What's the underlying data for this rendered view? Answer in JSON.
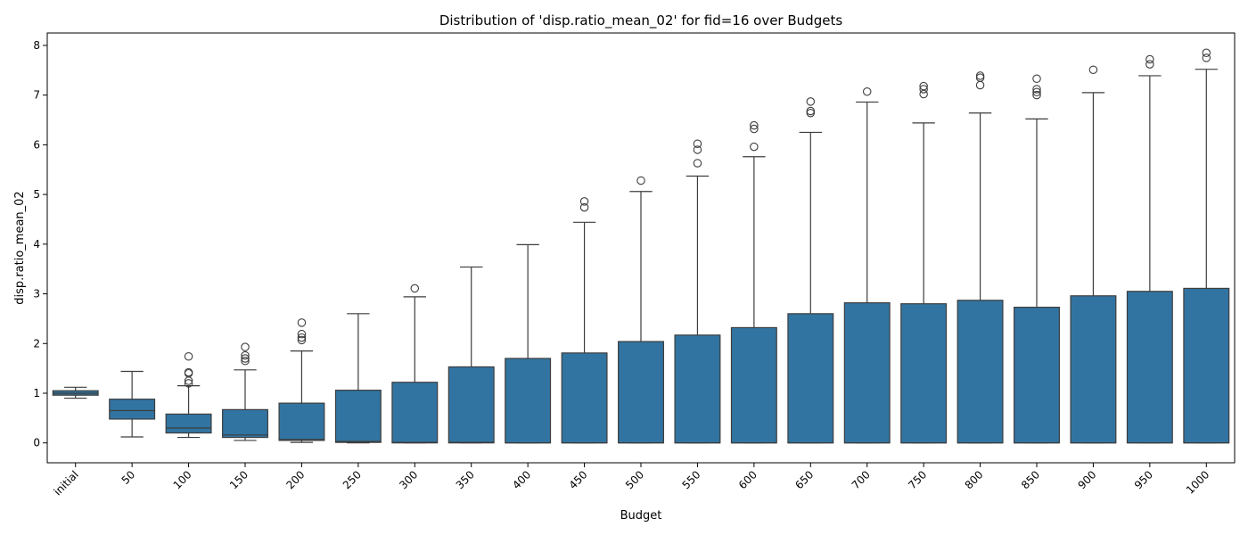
{
  "chart_data": {
    "type": "box",
    "title": "Distribution of 'disp.ratio_mean_02' for fid=16 over Budgets",
    "xlabel": "Budget",
    "ylabel": "disp.ratio_mean_02",
    "ylim": [
      -0.4,
      8.25
    ],
    "yticks": [
      0,
      1,
      2,
      3,
      4,
      5,
      6,
      7,
      8
    ],
    "grid": false,
    "box_color": "#3274a1",
    "line_color": "#3d3d3d",
    "categories": [
      "initial",
      "50",
      "100",
      "150",
      "200",
      "250",
      "300",
      "350",
      "400",
      "450",
      "500",
      "550",
      "600",
      "650",
      "700",
      "750",
      "800",
      "850",
      "900",
      "950",
      "1000"
    ],
    "boxes": [
      {
        "whisker_low": 0.9,
        "q1": 0.96,
        "median": 1.0,
        "q3": 1.05,
        "whisker_high": 1.12,
        "outliers": []
      },
      {
        "whisker_low": 0.12,
        "q1": 0.48,
        "median": 0.65,
        "q3": 0.88,
        "whisker_high": 1.44,
        "outliers": []
      },
      {
        "whisker_low": 0.11,
        "q1": 0.2,
        "median": 0.3,
        "q3": 0.58,
        "whisker_high": 1.15,
        "outliers": [
          1.2,
          1.25,
          1.4,
          1.42,
          1.74
        ]
      },
      {
        "whisker_low": 0.05,
        "q1": 0.11,
        "median": 0.16,
        "q3": 0.67,
        "whisker_high": 1.47,
        "outliers": [
          1.65,
          1.7,
          1.76,
          1.93
        ]
      },
      {
        "whisker_low": 0.01,
        "q1": 0.05,
        "median": 0.07,
        "q3": 0.8,
        "whisker_high": 1.85,
        "outliers": [
          2.07,
          2.12,
          2.19,
          2.42
        ]
      },
      {
        "whisker_low": 0.0,
        "q1": 0.01,
        "median": 0.03,
        "q3": 1.06,
        "whisker_high": 2.6,
        "outliers": []
      },
      {
        "whisker_low": 0.0,
        "q1": 0.0,
        "median": 0.01,
        "q3": 1.22,
        "whisker_high": 2.94,
        "outliers": [
          3.11
        ]
      },
      {
        "whisker_low": 0.0,
        "q1": 0.0,
        "median": 0.01,
        "q3": 1.53,
        "whisker_high": 3.54,
        "outliers": []
      },
      {
        "whisker_low": 0.0,
        "q1": 0.0,
        "median": 0.0,
        "q3": 1.7,
        "whisker_high": 3.99,
        "outliers": []
      },
      {
        "whisker_low": 0.0,
        "q1": 0.0,
        "median": 0.0,
        "q3": 1.81,
        "whisker_high": 4.44,
        "outliers": [
          4.74,
          4.86
        ]
      },
      {
        "whisker_low": 0.0,
        "q1": 0.0,
        "median": 0.0,
        "q3": 2.04,
        "whisker_high": 5.06,
        "outliers": [
          5.28
        ]
      },
      {
        "whisker_low": 0.0,
        "q1": 0.0,
        "median": 0.0,
        "q3": 2.17,
        "whisker_high": 5.37,
        "outliers": [
          5.63,
          5.9,
          6.02
        ]
      },
      {
        "whisker_low": 0.0,
        "q1": 0.0,
        "median": 0.0,
        "q3": 2.32,
        "whisker_high": 5.76,
        "outliers": [
          5.96,
          6.32,
          6.39
        ]
      },
      {
        "whisker_low": 0.0,
        "q1": 0.0,
        "median": 0.0,
        "q3": 2.6,
        "whisker_high": 6.25,
        "outliers": [
          6.64,
          6.68,
          6.87
        ]
      },
      {
        "whisker_low": 0.0,
        "q1": 0.0,
        "median": 0.0,
        "q3": 2.82,
        "whisker_high": 6.86,
        "outliers": [
          7.07
        ]
      },
      {
        "whisker_low": 0.0,
        "q1": 0.0,
        "median": 0.0,
        "q3": 2.8,
        "whisker_high": 6.44,
        "outliers": [
          7.02,
          7.12,
          7.18
        ]
      },
      {
        "whisker_low": 0.0,
        "q1": 0.0,
        "median": 0.0,
        "q3": 2.87,
        "whisker_high": 6.64,
        "outliers": [
          7.2,
          7.35,
          7.39
        ]
      },
      {
        "whisker_low": 0.0,
        "q1": 0.0,
        "median": 0.0,
        "q3": 2.73,
        "whisker_high": 6.52,
        "outliers": [
          7.0,
          7.06,
          7.12,
          7.33
        ]
      },
      {
        "whisker_low": 0.0,
        "q1": 0.0,
        "median": 0.0,
        "q3": 2.96,
        "whisker_high": 7.05,
        "outliers": [
          7.51
        ]
      },
      {
        "whisker_low": 0.0,
        "q1": 0.0,
        "median": 0.0,
        "q3": 3.05,
        "whisker_high": 7.39,
        "outliers": [
          7.62,
          7.72
        ]
      },
      {
        "whisker_low": 0.0,
        "q1": 0.0,
        "median": 0.0,
        "q3": 3.11,
        "whisker_high": 7.52,
        "outliers": [
          7.75,
          7.85
        ]
      }
    ]
  }
}
